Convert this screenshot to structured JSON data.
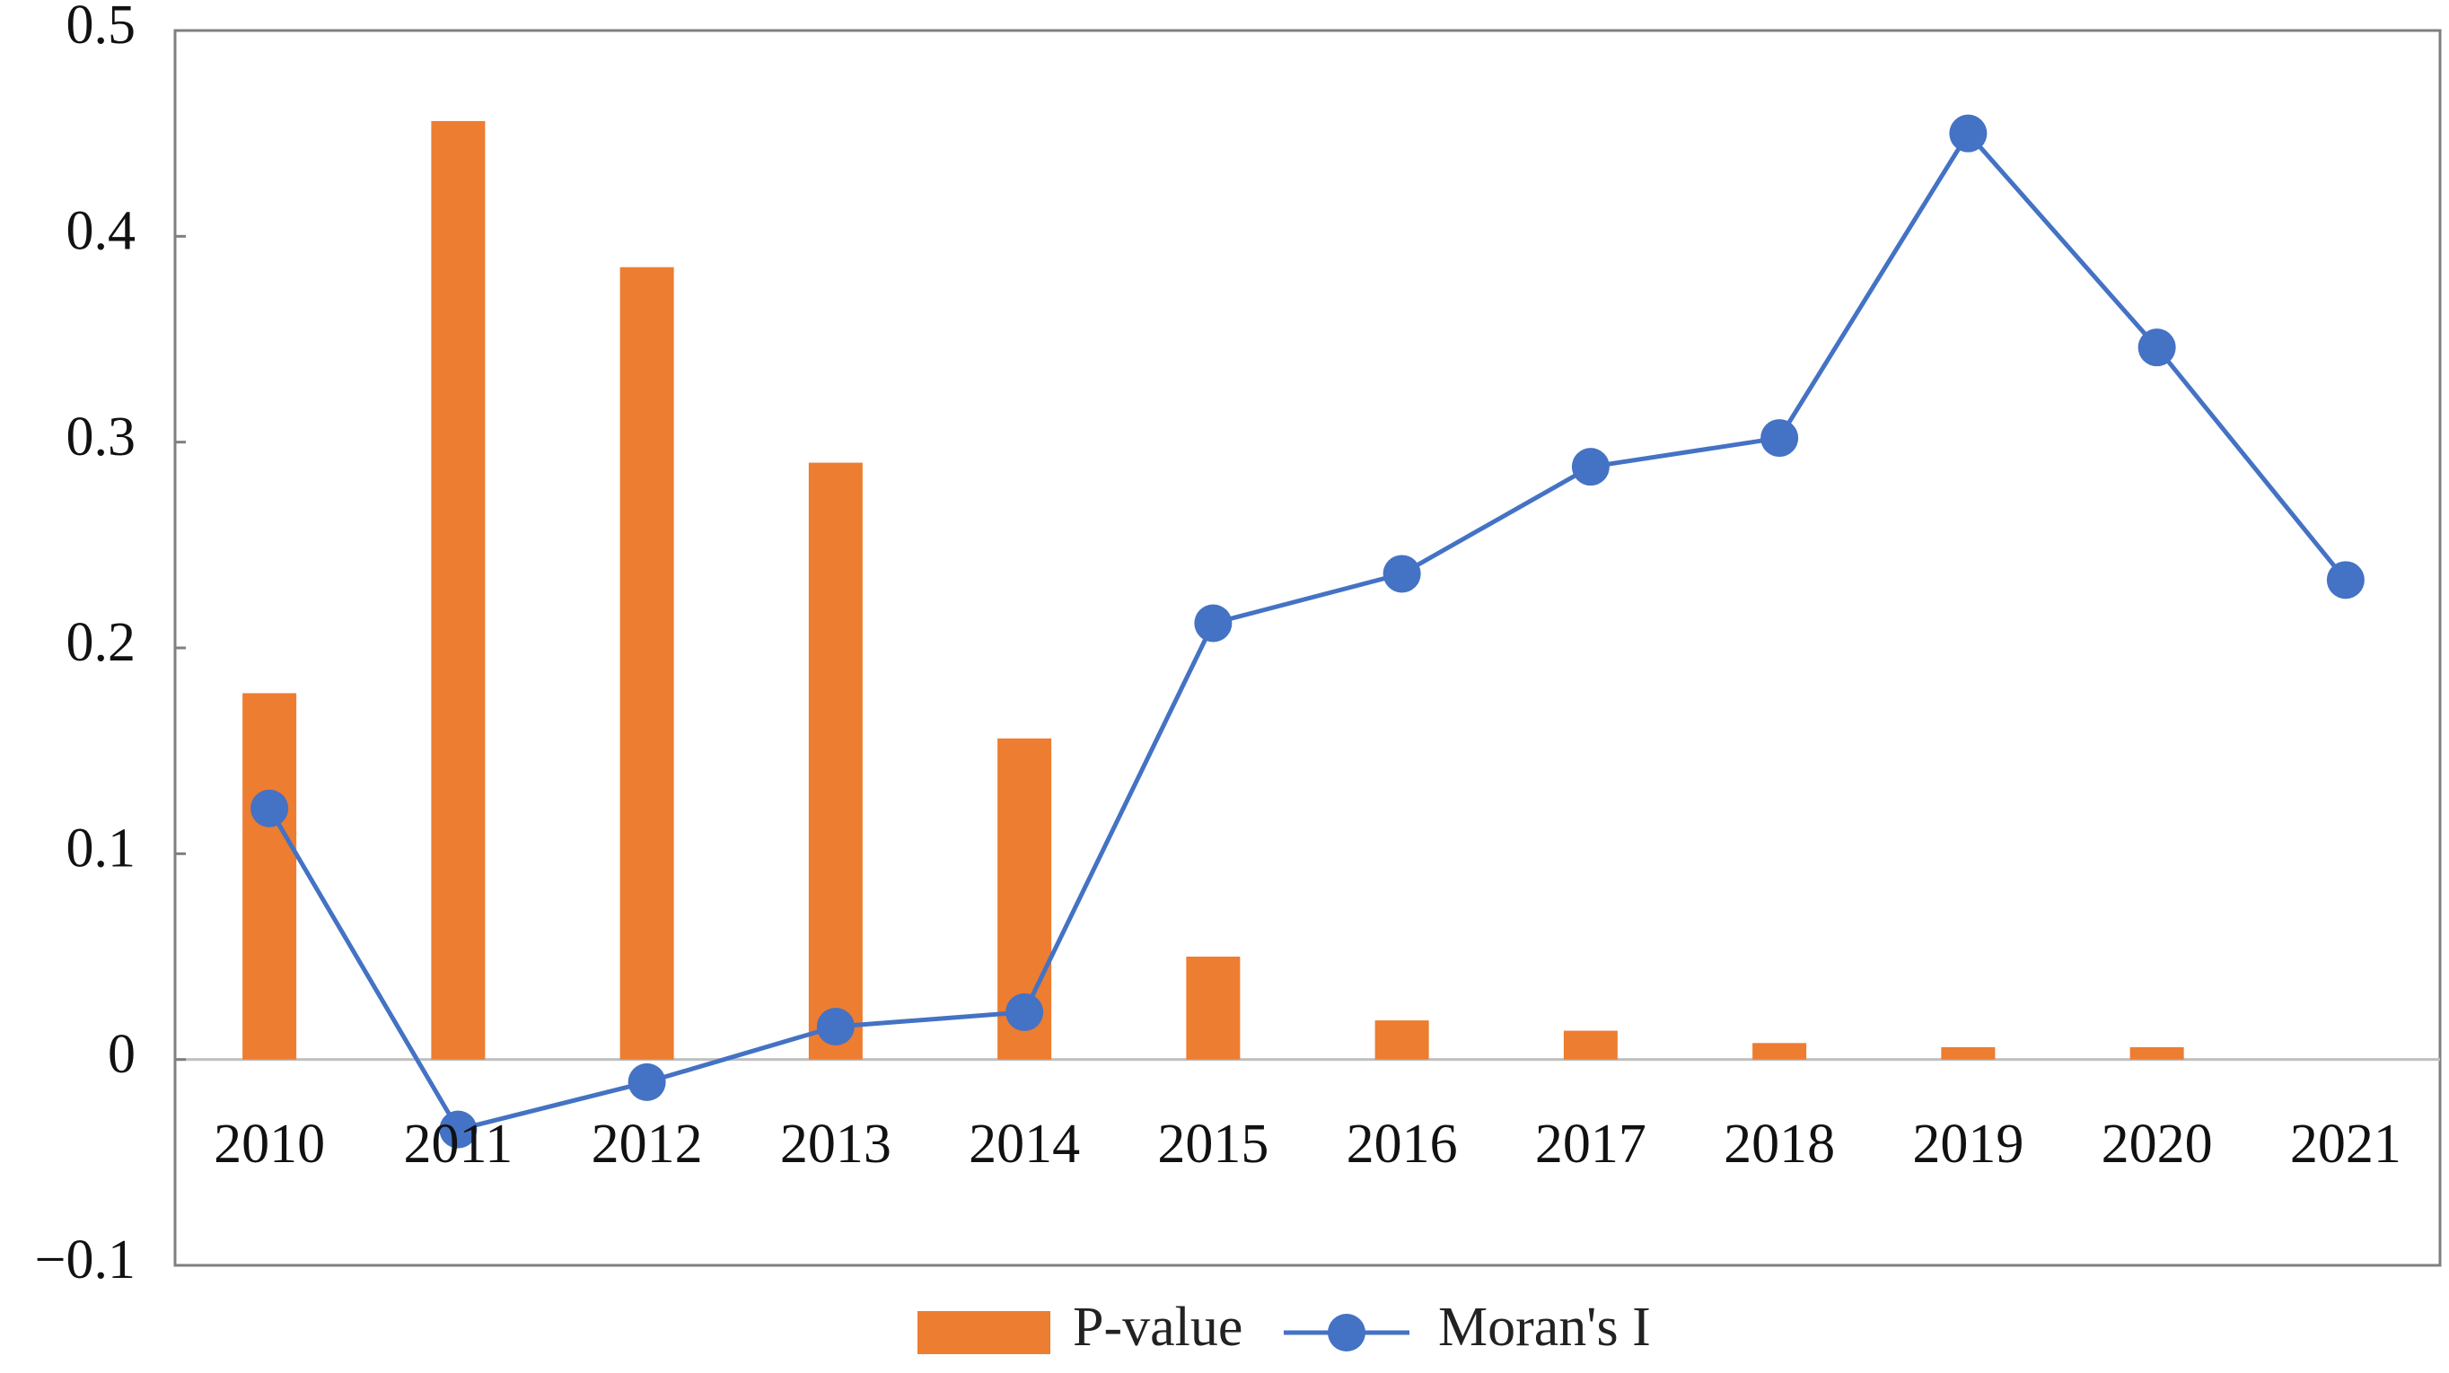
{
  "chart_data": {
    "type": "bar",
    "categories": [
      "2010",
      "2011",
      "2012",
      "2013",
      "2014",
      "2015",
      "2016",
      "2017",
      "2018",
      "2019",
      "2020",
      "2021"
    ],
    "series": [
      {
        "name": "P-value",
        "type": "bar",
        "color": "#ED7D31",
        "values": [
          0.178,
          0.456,
          0.385,
          0.29,
          0.156,
          0.05,
          0.019,
          0.014,
          0.008,
          0.006,
          0.006,
          0.0
        ]
      },
      {
        "name": "Moran's I",
        "type": "line",
        "color": "#4472C4",
        "values": [
          0.122,
          -0.034,
          -0.011,
          0.016,
          0.023,
          0.212,
          0.236,
          0.288,
          0.302,
          0.45,
          0.346,
          0.233
        ]
      }
    ],
    "ylim": [
      -0.1,
      0.5
    ],
    "yticks": [
      0.5,
      0.4,
      0.3,
      0.2,
      0.1,
      0,
      -0.1
    ],
    "ytick_labels": [
      "0.5",
      "0.4",
      "0.3",
      "0.2",
      "0.1",
      "0",
      "−0.1"
    ],
    "title": "",
    "xlabel": "",
    "ylabel": "",
    "legend_position": "bottom",
    "grid": false
  }
}
